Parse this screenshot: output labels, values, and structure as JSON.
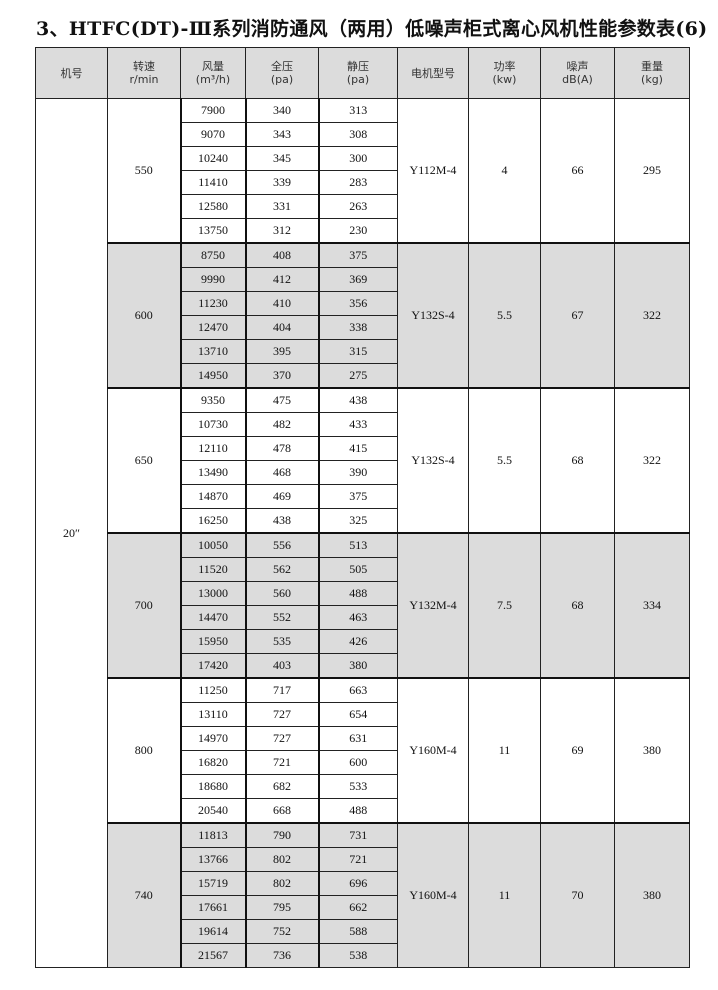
{
  "title": "3、HTFC(DT)-Ⅲ系列消防通风（两用）低噪声柜式离心风机性能参数表(6)",
  "headers": [
    [
      "机号",
      ""
    ],
    [
      "转速",
      "r/min"
    ],
    [
      "风量",
      "(m³/h)"
    ],
    [
      "全压",
      "(pa)"
    ],
    [
      "静压",
      "(pa)"
    ],
    [
      "电机型号",
      ""
    ],
    [
      "功率",
      "(kw)"
    ],
    [
      "噪声",
      "dB(A)"
    ],
    [
      "重量",
      "(kg)"
    ]
  ],
  "machine_no": "20″",
  "shade_color": "#dcdcdc",
  "groups": [
    {
      "speed": "550",
      "motor": "Y112M-4",
      "power": "4",
      "noise": "66",
      "weight": "295",
      "shaded": false,
      "rows": [
        [
          "7900",
          "340",
          "313"
        ],
        [
          "9070",
          "343",
          "308"
        ],
        [
          "10240",
          "345",
          "300"
        ],
        [
          "11410",
          "339",
          "283"
        ],
        [
          "12580",
          "331",
          "263"
        ],
        [
          "13750",
          "312",
          "230"
        ]
      ]
    },
    {
      "speed": "600",
      "motor": "Y132S-4",
      "power": "5.5",
      "noise": "67",
      "weight": "322",
      "shaded": true,
      "rows": [
        [
          "8750",
          "408",
          "375"
        ],
        [
          "9990",
          "412",
          "369"
        ],
        [
          "11230",
          "410",
          "356"
        ],
        [
          "12470",
          "404",
          "338"
        ],
        [
          "13710",
          "395",
          "315"
        ],
        [
          "14950",
          "370",
          "275"
        ]
      ]
    },
    {
      "speed": "650",
      "motor": "Y132S-4",
      "power": "5.5",
      "noise": "68",
      "weight": "322",
      "shaded": false,
      "rows": [
        [
          "9350",
          "475",
          "438"
        ],
        [
          "10730",
          "482",
          "433"
        ],
        [
          "12110",
          "478",
          "415"
        ],
        [
          "13490",
          "468",
          "390"
        ],
        [
          "14870",
          "469",
          "375"
        ],
        [
          "16250",
          "438",
          "325"
        ]
      ]
    },
    {
      "speed": "700",
      "motor": "Y132M-4",
      "power": "7.5",
      "noise": "68",
      "weight": "334",
      "shaded": true,
      "rows": [
        [
          "10050",
          "556",
          "513"
        ],
        [
          "11520",
          "562",
          "505"
        ],
        [
          "13000",
          "560",
          "488"
        ],
        [
          "14470",
          "552",
          "463"
        ],
        [
          "15950",
          "535",
          "426"
        ],
        [
          "17420",
          "403",
          "380"
        ]
      ]
    },
    {
      "speed": "800",
      "motor": "Y160M-4",
      "power": "11",
      "noise": "69",
      "weight": "380",
      "shaded": false,
      "rows": [
        [
          "11250",
          "717",
          "663"
        ],
        [
          "13110",
          "727",
          "654"
        ],
        [
          "14970",
          "727",
          "631"
        ],
        [
          "16820",
          "721",
          "600"
        ],
        [
          "18680",
          "682",
          "533"
        ],
        [
          "20540",
          "668",
          "488"
        ]
      ]
    },
    {
      "speed": "740",
      "motor": "Y160M-4",
      "power": "11",
      "noise": "70",
      "weight": "380",
      "shaded": true,
      "rows": [
        [
          "11813",
          "790",
          "731"
        ],
        [
          "13766",
          "802",
          "721"
        ],
        [
          "15719",
          "802",
          "696"
        ],
        [
          "17661",
          "795",
          "662"
        ],
        [
          "19614",
          "752",
          "588"
        ],
        [
          "21567",
          "736",
          "538"
        ]
      ]
    }
  ]
}
